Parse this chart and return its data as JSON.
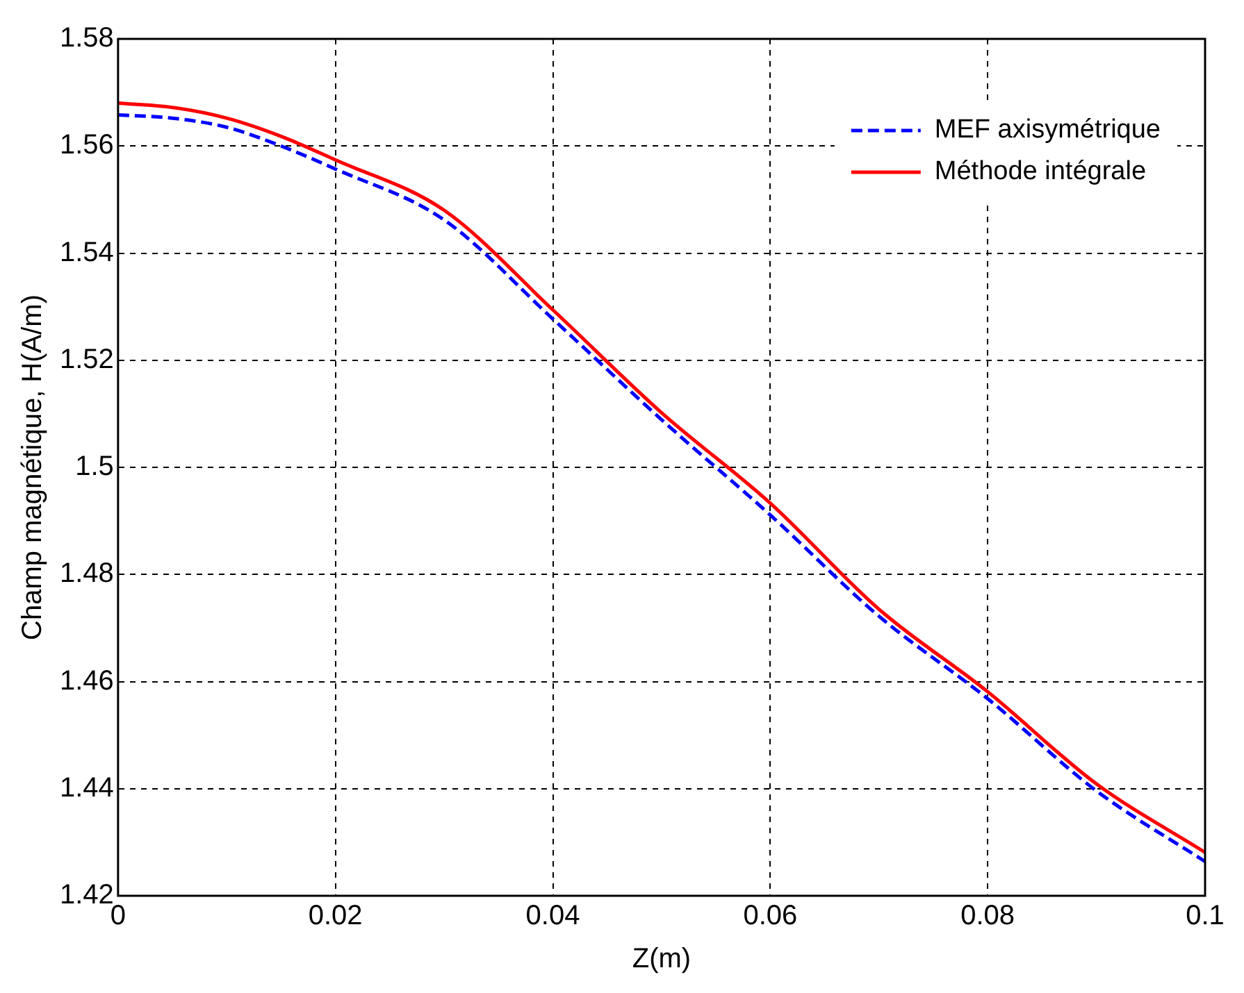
{
  "chart_data": {
    "type": "line",
    "xlabel": "Z(m)",
    "ylabel": "Champ magnétique, H(A/m)",
    "x": [
      0,
      0.005,
      0.01,
      0.015,
      0.02,
      0.03,
      0.04,
      0.05,
      0.06,
      0.07,
      0.08,
      0.09,
      0.1
    ],
    "series": [
      {
        "name": "MEF axisymétrique",
        "color": "#0000ff",
        "line_style": "dashed",
        "values": [
          1.5658,
          1.5652,
          1.5635,
          1.56,
          1.5557,
          1.5462,
          1.5277,
          1.5089,
          1.4911,
          1.4722,
          1.4568,
          1.4396,
          1.4264
        ]
      },
      {
        "name": "Méthode intégrale",
        "color": "#ff0000",
        "line_style": "solid",
        "values": [
          1.568,
          1.5672,
          1.5652,
          1.5618,
          1.5574,
          1.548,
          1.5294,
          1.5102,
          1.4933,
          1.4735,
          1.4581,
          1.4409,
          1.4281
        ]
      }
    ],
    "xlim": [
      0,
      0.1
    ],
    "xticks": [
      0,
      0.02,
      0.04,
      0.06,
      0.08,
      0.1
    ],
    "ylim": [
      1.42,
      1.58
    ],
    "yticks": [
      1.42,
      1.44,
      1.46,
      1.48,
      1.5,
      1.52,
      1.54,
      1.56,
      1.58
    ],
    "grid": true,
    "legend": "top right",
    "marker": "none"
  }
}
